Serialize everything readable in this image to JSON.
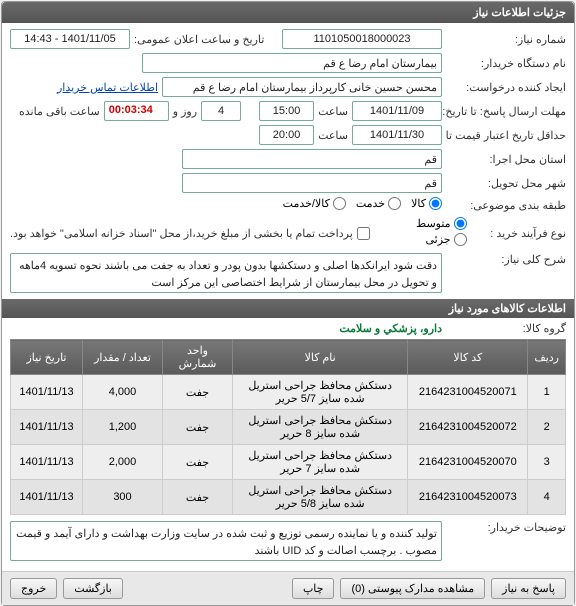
{
  "window": {
    "title": "جزئیات اطلاعات نیاز"
  },
  "labels": {
    "need_no": "شماره نیاز:",
    "buyer": "نام دستگاه خریدار:",
    "requester": "ایجاد کننده درخواست:",
    "reply_deadline": "مهلت ارسال پاسخ: تا تاریخ:",
    "validity": "حداقل تاریخ اعتبار قیمت تا تاریخ:",
    "exec_province": "استان محل اجرا:",
    "delivery_city": "شهر محل تحویل:",
    "subject_class": "طبقه بندی موضوعی:",
    "purchase_type": "نوع فرآیند خرید :",
    "general_desc": "شرح کلی نیاز:",
    "goods_group": "گروه کالا:",
    "buyer_desc": "توضیحات خریدار:",
    "announce": "تاریخ و ساعت اعلان عمومی:",
    "contact": "اطلاعات تماس خریدار",
    "hour": "ساعت",
    "day_and": "روز و",
    "remain": "ساعت باقی مانده",
    "section_goods": "اطلاعات کالاهای مورد نیاز",
    "partial_pay": "پرداخت تمام یا بخشی از مبلغ خرید،از محل \"اسناد خزانه اسلامی\" خواهد بود."
  },
  "fields": {
    "need_no": "1101050018000023",
    "buyer": "بیمارستان امام رضا ع  قم",
    "requester": "محسن حسین خانی کارپرداز بیمارستان امام رضا ع  قم",
    "reply_date": "1401/11/09",
    "reply_time": "15:00",
    "reply_days": "4",
    "countdown": "00:03:34",
    "validity_date": "1401/11/30",
    "validity_time": "20:00",
    "exec_province": "قم",
    "delivery_city": "قم",
    "announce": "1401/11/05 - 14:43",
    "goods_group": "دارو، پزشكي و سلامت",
    "general_desc": "دقت شود ایرانکدها اصلی و دستکشها بدون پودر و تعداد به جفت می باشند نحوه تسویه 4ماهه و تحویل در محل بیمارستان از شرایط اختصاصی این مرکز است",
    "buyer_desc": "تولید کننده و یا نماینده رسمی توزیع و ثبت شده در سایت وزارت بهداشت و دارای آیمد و قیمت مصوب . برچسب اصالت و کد UID باشند"
  },
  "radios": {
    "subject": [
      {
        "label": "کالا",
        "checked": true
      },
      {
        "label": "خدمت",
        "checked": false
      },
      {
        "label": "کالا/خدمت",
        "checked": false
      }
    ],
    "purchase": [
      {
        "label": "متوسط",
        "checked": true
      },
      {
        "label": "جزئی",
        "checked": false
      }
    ]
  },
  "table": {
    "columns": [
      "ردیف",
      "کد کالا",
      "نام کالا",
      "واحد شمارش",
      "تعداد / مقدار",
      "تاریخ نیاز"
    ],
    "rows": [
      [
        "1",
        "2164231004520071",
        "دستكش محافظ جراحی استریل شده سایز 5/7 حریر",
        "جفت",
        "4,000",
        "1401/11/13"
      ],
      [
        "2",
        "2164231004520072",
        "دستكش محافظ جراحی استریل شده سایز 8 حریر",
        "جفت",
        "1,200",
        "1401/11/13"
      ],
      [
        "3",
        "2164231004520070",
        "دستكش محافظ جراحی استریل شده سایز 7 حریر",
        "جفت",
        "2,000",
        "1401/11/13"
      ],
      [
        "4",
        "2164231004520073",
        "دستكش محافظ جراحی استریل شده سایز 5/8 حریر",
        "جفت",
        "300",
        "1401/11/13"
      ]
    ],
    "col_widths": [
      "36px",
      "120px",
      "auto",
      "70px",
      "80px",
      "72px"
    ]
  },
  "buttons": {
    "reply": "پاسخ به نیاز",
    "attach": "مشاهده مدارک پیوستی  (0)",
    "print": "چاپ",
    "back": "بازگشت",
    "exit": "خروج"
  }
}
